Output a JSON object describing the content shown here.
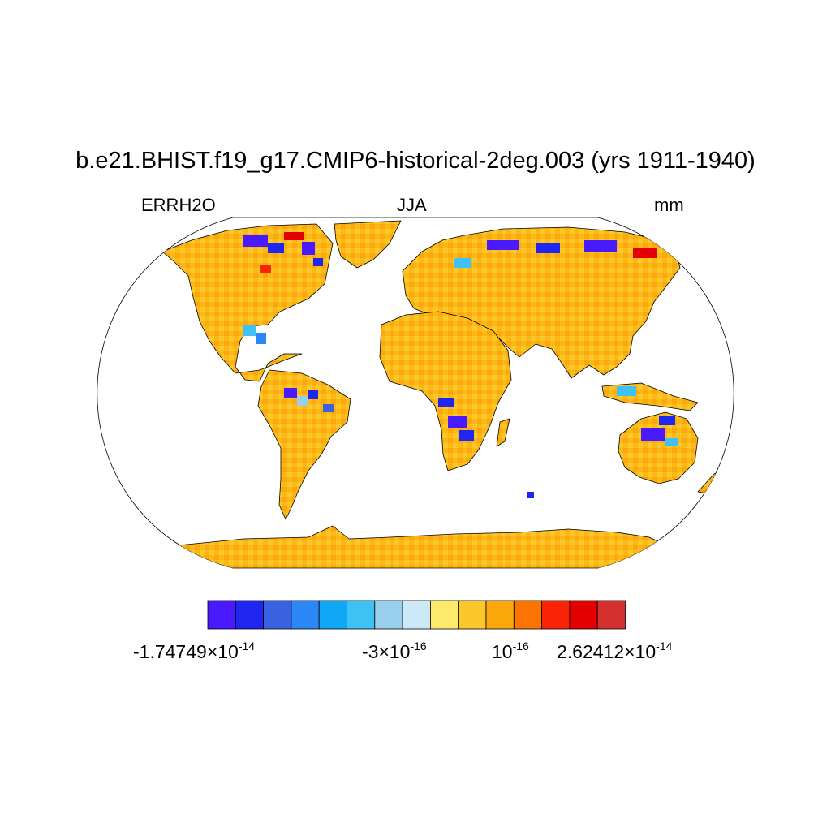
{
  "title": "b.e21.BHIST.f19_g17.CMIP6-historical-2deg.003 (yrs 1911-1940)",
  "subtitle_left": "ERRH2O",
  "subtitle_center": "JJA",
  "subtitle_right": "mm",
  "map": {
    "projection": "robinson",
    "ocean_color": "#ffffff",
    "coastline_color": "#000000",
    "dominant_land_color": "#fbb817"
  },
  "colorbar": {
    "colors": [
      "#4a1aff",
      "#1e26f0",
      "#3a62e0",
      "#2b87f5",
      "#10a8f5",
      "#3ec2f5",
      "#98cfec",
      "#cde8f6",
      "#fde96a",
      "#fbc829",
      "#fca80d",
      "#fb7404",
      "#fb2306",
      "#e20000",
      "#d62f2f"
    ],
    "labels": [
      {
        "mantissa": "-1.74749",
        "exponent": "-14"
      },
      {
        "mantissa": "-3",
        "exponent": "-16"
      },
      {
        "mantissa": "",
        "exponent": "-16"
      },
      {
        "mantissa": "2.62412",
        "exponent": "-14"
      }
    ]
  }
}
